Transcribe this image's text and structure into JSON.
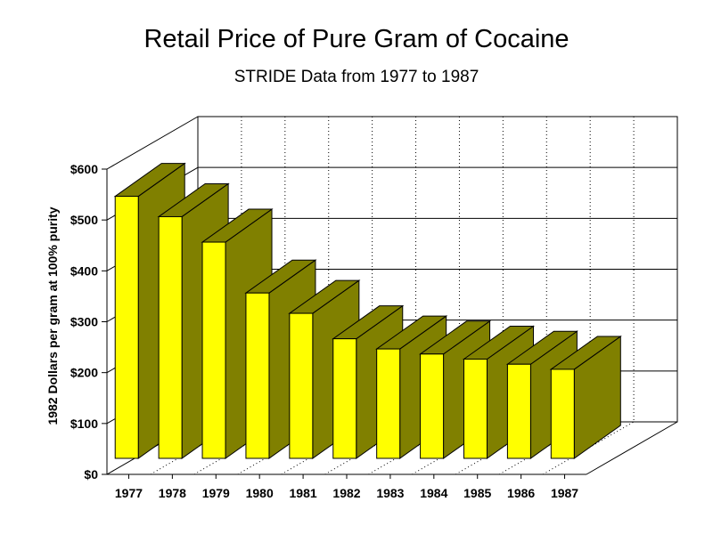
{
  "chart_data": {
    "type": "bar",
    "title": "Retail Price of Pure Gram of Cocaine",
    "subtitle": "STRIDE Data from 1977 to 1987",
    "ylabel": "1982 Dollars per gram at 100% purity",
    "xlabel": "",
    "categories": [
      "1977",
      "1978",
      "1979",
      "1980",
      "1981",
      "1982",
      "1983",
      "1984",
      "1985",
      "1986",
      "1987"
    ],
    "values": [
      515,
      475,
      425,
      325,
      285,
      235,
      215,
      205,
      195,
      185,
      175
    ],
    "ylim": [
      0,
      600
    ],
    "yticks": [
      "$0",
      "$100",
      "$200",
      "$300",
      "$400",
      "$500",
      "$600"
    ],
    "grid": true,
    "legend": "none",
    "style": "3d",
    "colors": {
      "bar_front": "#ffff00",
      "bar_side": "#808000",
      "bar_top": "#808000"
    }
  }
}
